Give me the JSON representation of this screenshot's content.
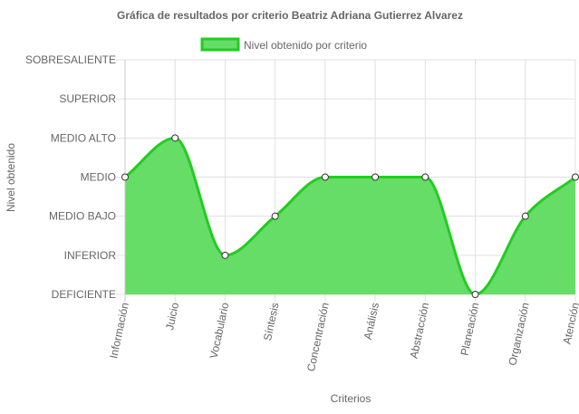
{
  "chart_data": {
    "type": "area",
    "title": "Gráfica de resultados por criterio Beatriz Adriana Gutierrez Alvarez",
    "xlabel": "Criterios",
    "ylabel": "Nivel obtenido",
    "categories": [
      "Información",
      "Juicio",
      "Vocabulario",
      "Síntesis",
      "Concentración",
      "Análisis",
      "Abstracción",
      "Planeación",
      "Organización",
      "Atención"
    ],
    "y_levels": [
      "DEFICIENTE",
      "INFERIOR",
      "MEDIO BAJO",
      "MEDIO",
      "MEDIO ALTO",
      "SUPERIOR",
      "SOBRESALIENTE"
    ],
    "series": [
      {
        "name": "Nivel obtenido por criterio",
        "values": [
          "MEDIO",
          "MEDIO ALTO",
          "INFERIOR",
          "MEDIO BAJO",
          "MEDIO",
          "MEDIO",
          "MEDIO",
          "DEFICIENTE",
          "MEDIO BAJO",
          "MEDIO"
        ],
        "fill_color": "#66dd66",
        "line_color": "#22cc22"
      }
    ],
    "grid": true,
    "legend_position": "top"
  }
}
